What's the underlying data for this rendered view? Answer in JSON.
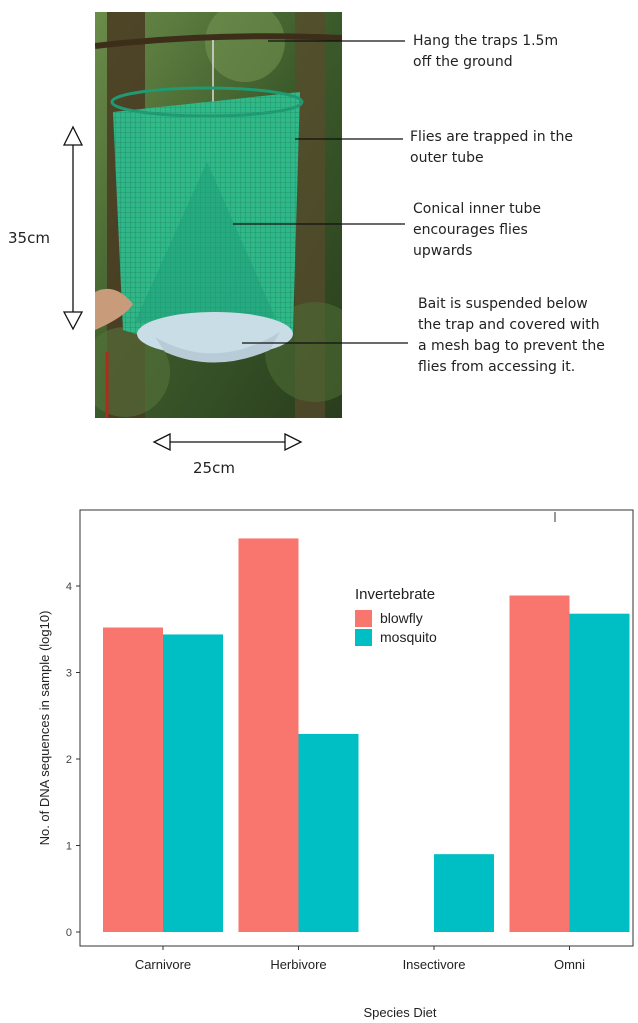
{
  "figure": {
    "annotations": {
      "hang": "Hang the traps 1.5m\noff the ground",
      "trapped": "Flies are trapped in the\nouter tube",
      "cone": "Conical inner tube\nencourages flies\nupwards",
      "bait": "Bait is suspended below\nthe trap and covered with\na mesh bag to prevent the\nflies from accessing it."
    },
    "height_label": "35cm",
    "width_label": "25cm",
    "colors": {
      "trap_mesh": "#27b388",
      "foliage": "#3e5a2c",
      "bait_bag": "#c9dde6"
    }
  },
  "chart_data": {
    "type": "bar",
    "categories": [
      "Carnivore",
      "Herbivore",
      "Insectivore",
      "Omni"
    ],
    "series": [
      {
        "name": "blowfly",
        "color": "#f8766d",
        "values": [
          3.52,
          4.55,
          null,
          3.89
        ]
      },
      {
        "name": "mosquito",
        "color": "#00bfc4",
        "values": [
          3.44,
          2.29,
          0.9,
          3.68
        ]
      }
    ],
    "xlabel": "Species Diet",
    "ylabel": "No. of DNA sequences in sample (log10)",
    "legend_title": "Invertebrate",
    "legend_position": "inside-top-center",
    "ylim": [
      0,
      4.65
    ],
    "yticks": [
      0,
      1,
      2,
      3,
      4
    ],
    "grid": false
  }
}
